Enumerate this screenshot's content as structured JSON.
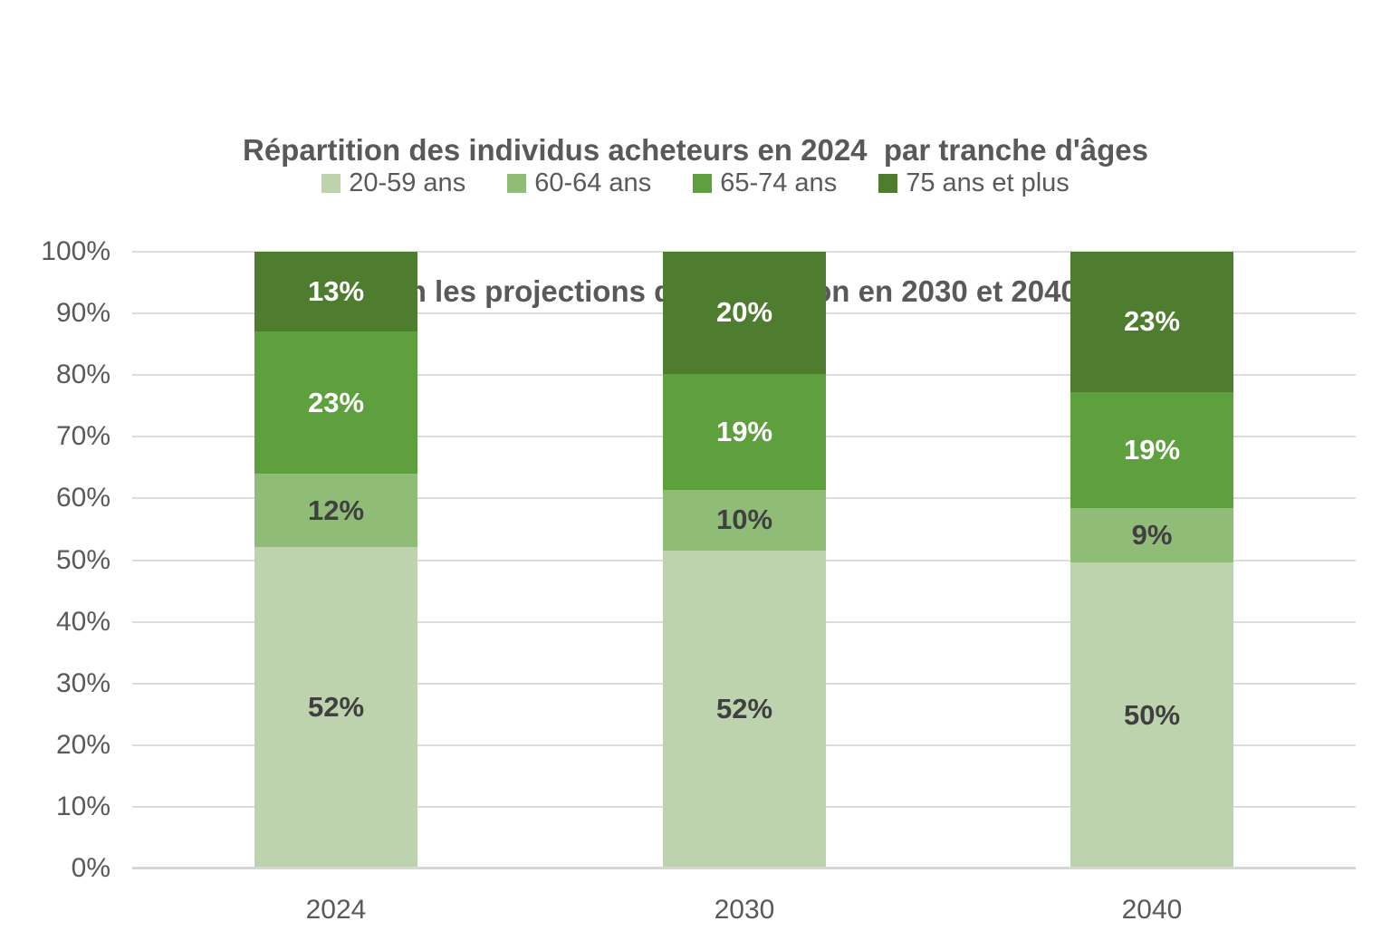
{
  "chart_data": {
    "type": "bar",
    "variant": "stacked-100",
    "title_line1": "Répartition des individus acheteurs en 2024  par tranche d'âges",
    "title_line2": "et selon les projections de population en 2030 et 2040",
    "categories": [
      "2024",
      "2030",
      "2040"
    ],
    "series": [
      {
        "name": "20-59 ans",
        "color": "#BCD3AD",
        "label_color": "#404040",
        "values": [
          52,
          52,
          50
        ]
      },
      {
        "name": "60-64 ans",
        "color": "#8FBD78",
        "label_color": "#404040",
        "values": [
          12,
          10,
          9
        ]
      },
      {
        "name": "65-74 ans",
        "color": "#5EA03D",
        "label_color": "#FFFFFF",
        "values": [
          23,
          19,
          19
        ]
      },
      {
        "name": "75 ans et plus",
        "color": "#4F7D30",
        "label_color": "#FFFFFF",
        "values": [
          13,
          20,
          23
        ]
      }
    ],
    "value_suffix": "%",
    "y_ticks": [
      0,
      10,
      20,
      30,
      40,
      50,
      60,
      70,
      80,
      90,
      100
    ],
    "y_tick_suffix": "%",
    "ylim": [
      0,
      100
    ],
    "grid": true,
    "legend_position": "top",
    "colors": {
      "text": "#595959",
      "gridline": "#DDDDDD",
      "axis_line": "#D6D6D6",
      "background": "#FFFFFF"
    }
  }
}
